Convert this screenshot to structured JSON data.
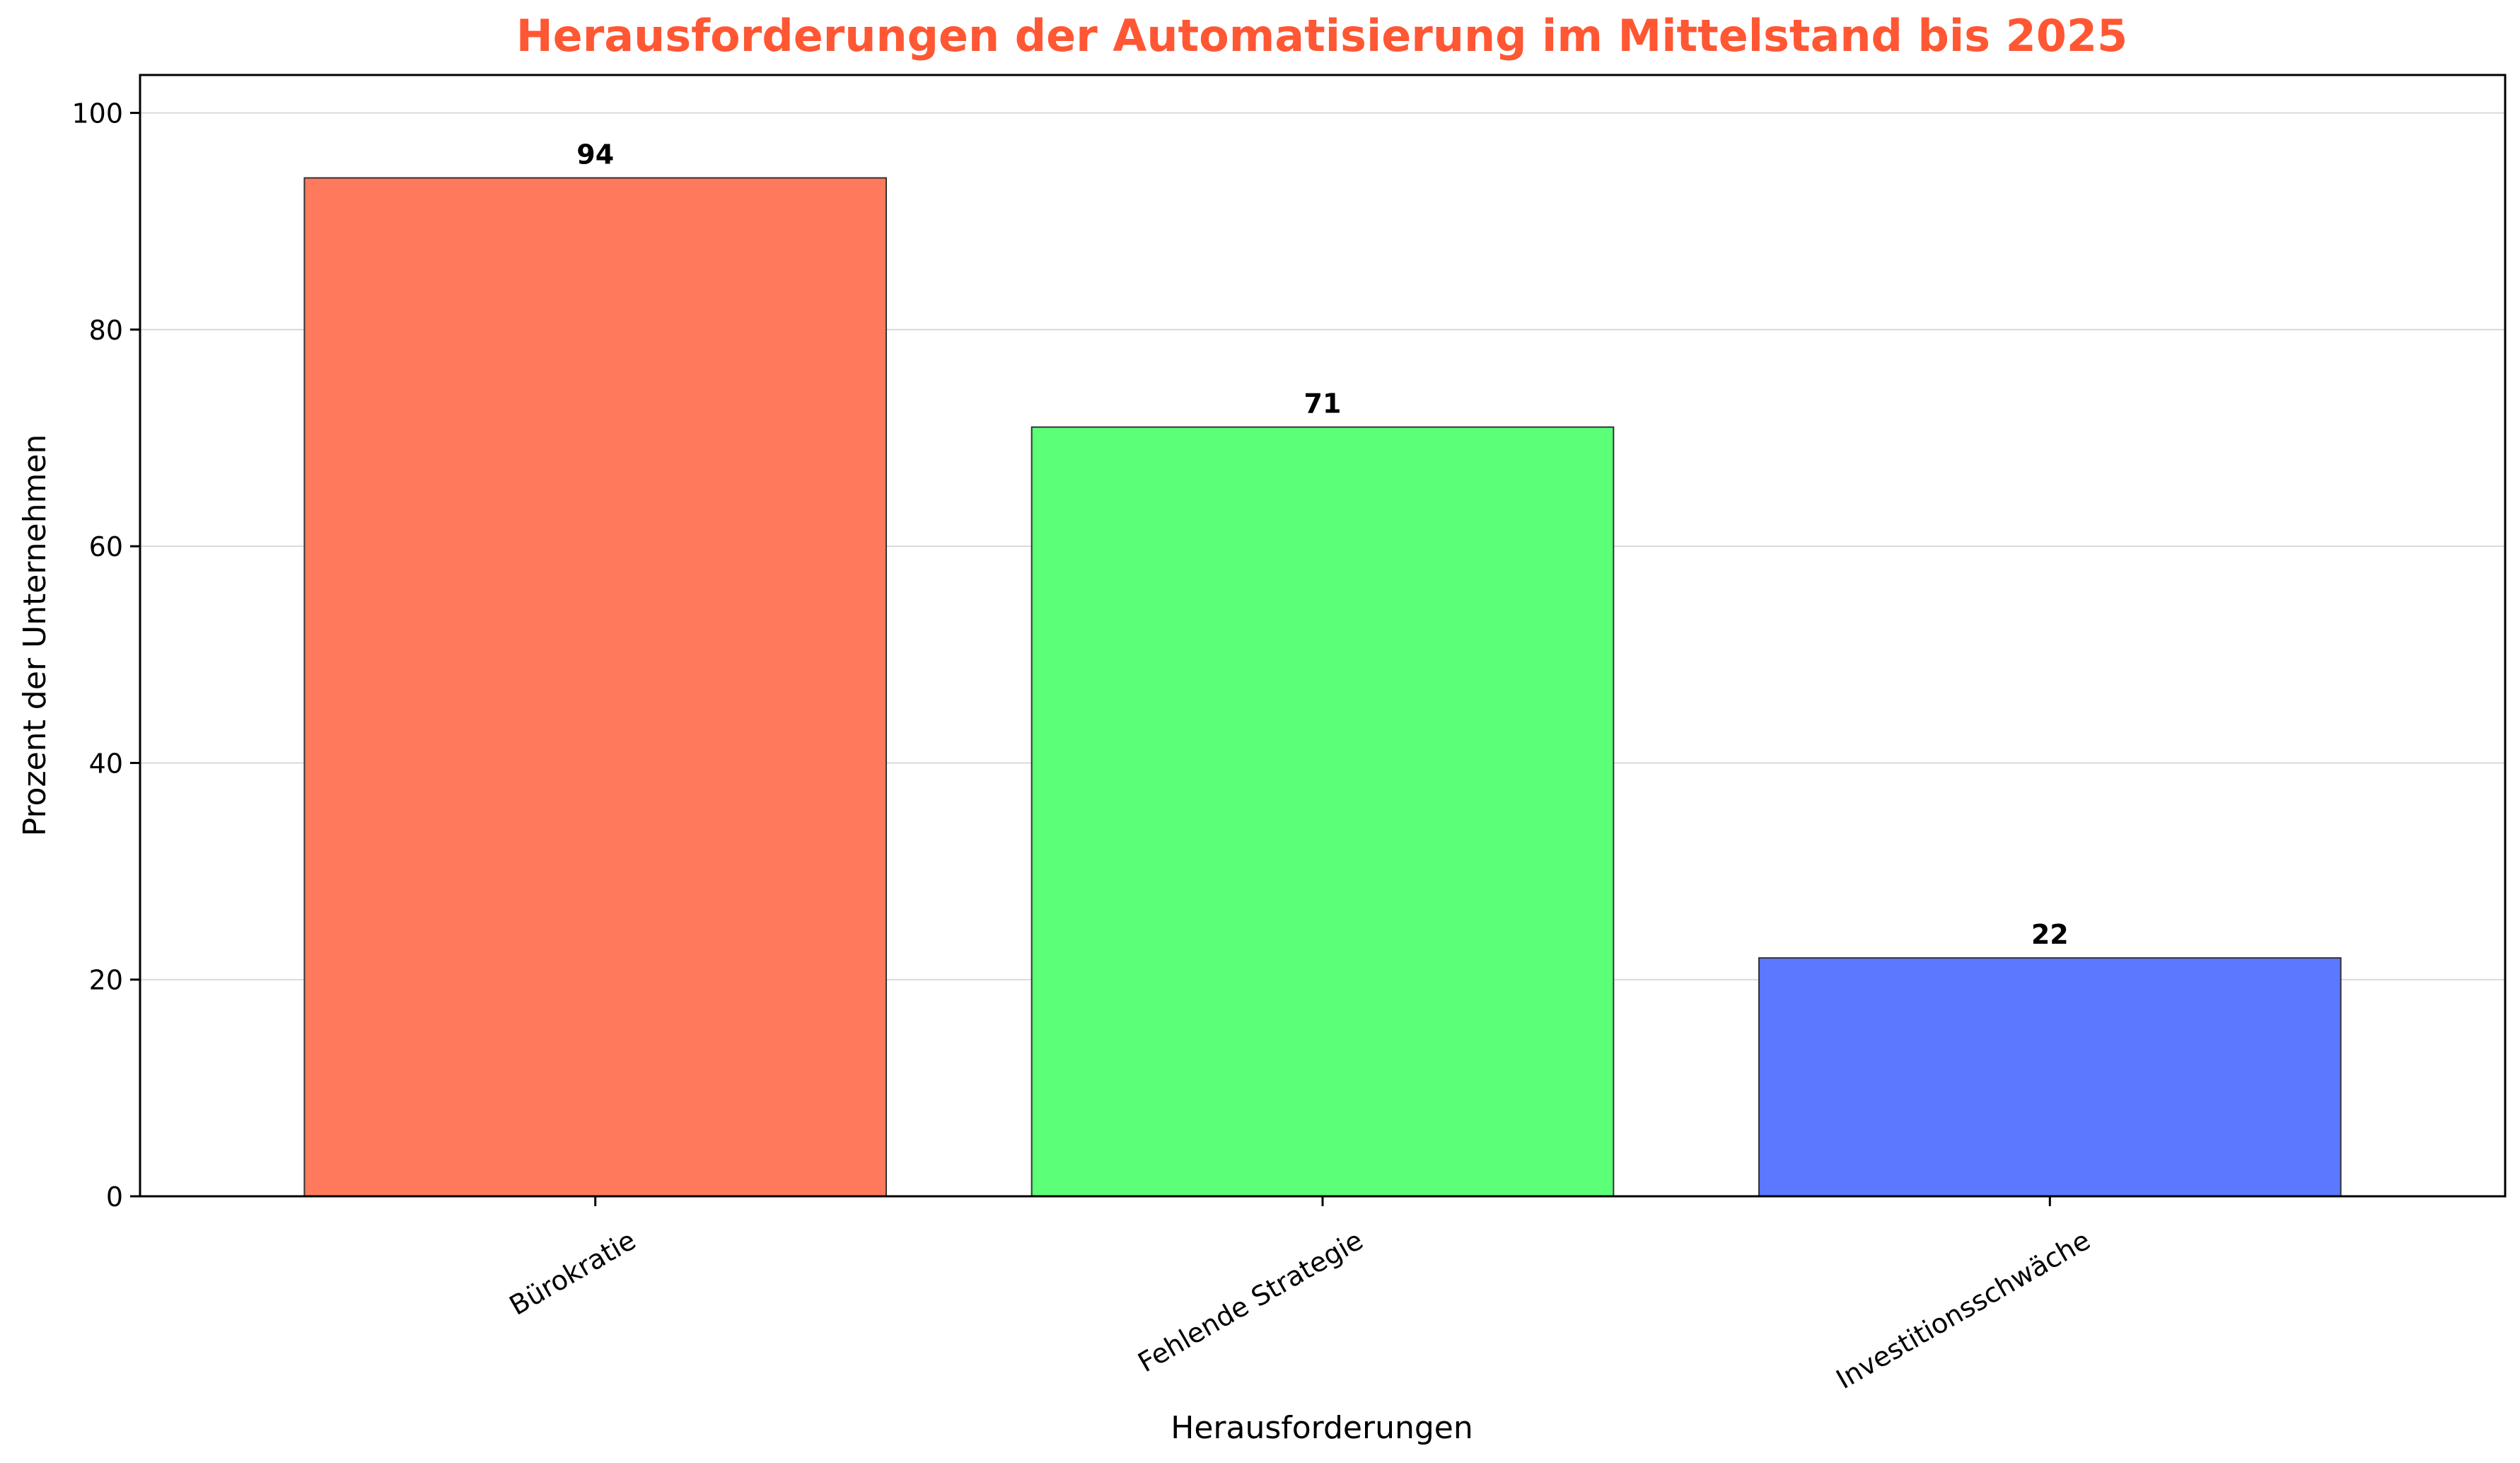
{
  "chart_data": {
    "type": "bar",
    "title": "Herausforderungen der Automatisierung im Mittelstand bis 2025",
    "xlabel": "Herausforderungen",
    "ylabel": "Prozent der Unternehmen",
    "categories": [
      "Bürokratie",
      "Fehlende Strategie",
      "Investitionsschwäche"
    ],
    "values": [
      94,
      71,
      22
    ],
    "data_labels": [
      "94",
      "71",
      "22"
    ],
    "bar_colors": [
      "#FF7A5C",
      "#5CFF78",
      "#5C78FF"
    ],
    "ylim": [
      0,
      103.5
    ],
    "yticks": [
      0,
      20,
      40,
      60,
      80,
      100
    ],
    "grid": "horizontal",
    "title_color": "#FF5733"
  }
}
